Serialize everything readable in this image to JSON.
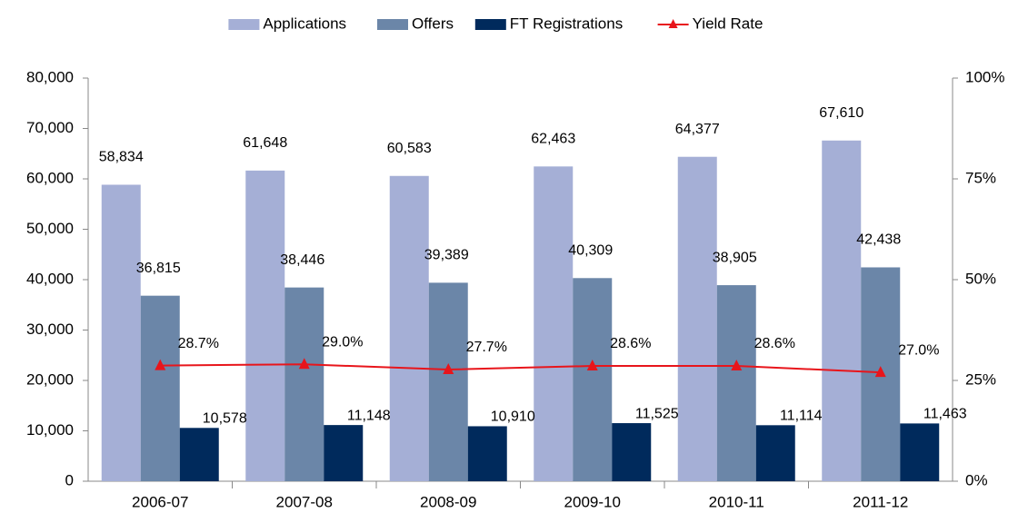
{
  "chart_data": {
    "type": "bar",
    "categories": [
      "2006-07",
      "2007-08",
      "2008-09",
      "2009-10",
      "2010-11",
      "2011-12"
    ],
    "series": [
      {
        "name": "Applications",
        "color": "#a5afd6",
        "values": [
          58834,
          61648,
          60583,
          62463,
          64377,
          67610
        ],
        "value_labels": [
          "58,834",
          "61,648",
          "60,583",
          "62,463",
          "64,377",
          "67,610"
        ]
      },
      {
        "name": "Offers",
        "color": "#6b86a8",
        "values": [
          36815,
          38446,
          39389,
          40309,
          38905,
          42438
        ],
        "value_labels": [
          "36,815",
          "38,446",
          "39,389",
          "40,309",
          "38,905",
          "42,438"
        ]
      },
      {
        "name": "FT Registrations",
        "color": "#002a5c",
        "values": [
          10578,
          11148,
          10910,
          11525,
          11114,
          11463
        ],
        "value_labels": [
          "10,578",
          "11,148",
          "10,910",
          "11,525",
          "11,114",
          "11,463"
        ]
      },
      {
        "name": "Yield Rate",
        "type": "line",
        "axis": "y2",
        "color": "#e8151b",
        "values": [
          28.7,
          29.0,
          27.7,
          28.6,
          28.6,
          27.0
        ],
        "value_labels": [
          "28.7%",
          "29.0%",
          "27.7%",
          "28.6%",
          "28.6%",
          "27.0%"
        ]
      }
    ],
    "ylim": [
      0,
      80000
    ],
    "yticks": [
      0,
      {
        "value": 10000,
        "label": "10,000"
      },
      {
        "value": 20000,
        "label": "20,000"
      },
      {
        "value": 30000,
        "label": "30,000"
      },
      {
        "value": 40000,
        "label": "40,000"
      },
      {
        "value": 50000,
        "label": "50,000"
      },
      {
        "value": 60000,
        "label": "60,000"
      },
      {
        "value": 70000,
        "label": "70,000"
      },
      {
        "value": 80000,
        "label": "80,000"
      }
    ],
    "y2lim": [
      0,
      100
    ],
    "y2ticks": [
      {
        "value": 0,
        "label": "0%"
      },
      {
        "value": 25,
        "label": "25%"
      },
      {
        "value": 50,
        "label": "50%"
      },
      {
        "value": 75,
        "label": "75%"
      },
      {
        "value": 100,
        "label": "100%"
      }
    ],
    "grid": false,
    "legend": "top"
  }
}
